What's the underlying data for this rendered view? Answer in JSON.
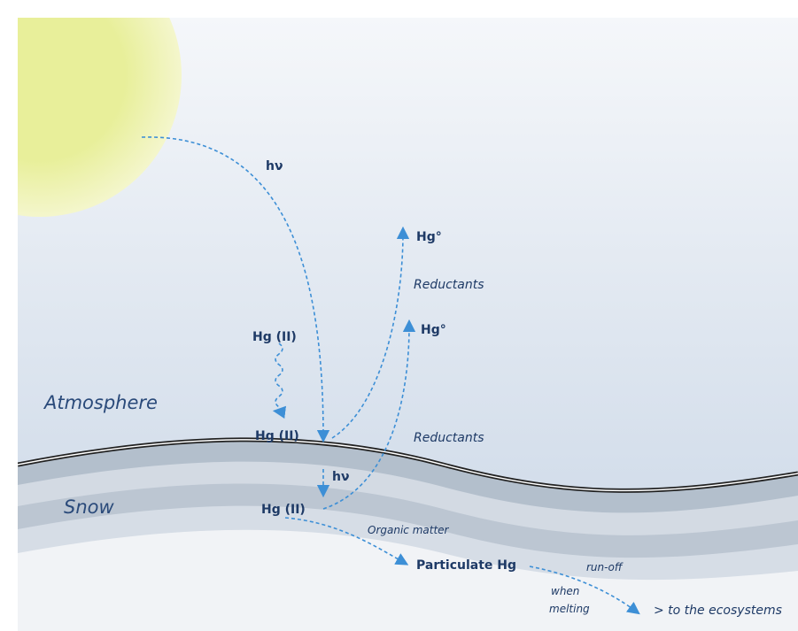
{
  "zones": {
    "atmosphere": "Atmosphere",
    "snow": "Snow"
  },
  "species": {
    "hg0_upper": "Hg°",
    "hg0_lower": "Hg°",
    "hg2_air": "Hg (II)",
    "hg2_surface": "Hg (II)",
    "hg2_snow": "Hg (II)",
    "particulate": "Particulate Hg"
  },
  "processes": {
    "light_air": "hν",
    "light_snow": "hν",
    "reductants_upper": "Reductants",
    "reductants_lower": "Reductants",
    "organic": "Organic matter",
    "runoff": "run-off",
    "when": "when",
    "melting": "melting",
    "ecosystems": "> to the ecosystems"
  }
}
